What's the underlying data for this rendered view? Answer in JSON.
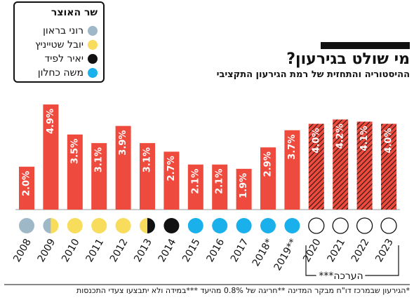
{
  "legend": {
    "title": "שר האוצר",
    "items": [
      {
        "label": "רוני בראון",
        "color": "#9fb8c8"
      },
      {
        "label": "יובל שטייניץ",
        "color": "#f8dc5c"
      },
      {
        "label": "יאיר לפיד",
        "color": "#111111"
      },
      {
        "label": "משה כחלון",
        "color": "#1ab0ec"
      }
    ]
  },
  "header": {
    "title": "מי שולט בגירעון?",
    "subtitle": "ההיסטוריה והתחזית של רמת הגירעון התקציבי"
  },
  "footnote": "*הגירעון שבמרכז דו\"ח מבקר המדינה **חריגה של 0.8% מהיעד ***במידה ולא יתבצעו צעדי התכנסות",
  "estimate_label": "הערכה***",
  "colors": {
    "bar": "#ee4b3e",
    "estimate_stripe": "#2a1512",
    "text_on_bar": "#ffffff"
  },
  "chart_data": {
    "type": "bar",
    "categories": [
      "2008",
      "2009",
      "2010",
      "2011",
      "2012",
      "2013",
      "2014",
      "2015",
      "2016",
      "2017",
      "2018*",
      "2019**",
      "2020",
      "2021",
      "2022",
      "2023"
    ],
    "values": [
      2.0,
      4.9,
      3.5,
      3.1,
      3.9,
      3.1,
      2.7,
      2.1,
      2.1,
      1.9,
      2.9,
      3.7,
      4.0,
      4.2,
      4.1,
      4.0
    ],
    "labels": [
      "2.0%",
      "4.9%",
      "3.5%",
      "3.1%",
      "3.9%",
      "3.1%",
      "2.7%",
      "2.1%",
      "2.1%",
      "1.9%",
      "2.9%",
      "3.7%",
      "4.0%",
      "4.2%",
      "4.1%",
      "4.0%"
    ],
    "estimated": [
      false,
      false,
      false,
      false,
      false,
      false,
      false,
      false,
      false,
      false,
      false,
      false,
      true,
      true,
      true,
      true
    ],
    "minister": [
      [
        "brown"
      ],
      [
        "brown",
        "steinitz"
      ],
      [
        "steinitz"
      ],
      [
        "steinitz"
      ],
      [
        "steinitz"
      ],
      [
        "steinitz",
        "lapid"
      ],
      [
        "lapid"
      ],
      [
        "kahlon"
      ],
      [
        "kahlon"
      ],
      [
        "kahlon"
      ],
      [
        "kahlon"
      ],
      [
        "kahlon"
      ],
      [
        "none"
      ],
      [
        "none"
      ],
      [
        "none"
      ],
      [
        "none"
      ]
    ],
    "minister_colors": {
      "brown": "#9fb8c8",
      "steinitz": "#f8dc5c",
      "lapid": "#111111",
      "kahlon": "#1ab0ec",
      "none": "#ffffff"
    },
    "ylim": [
      0,
      5.0
    ]
  }
}
